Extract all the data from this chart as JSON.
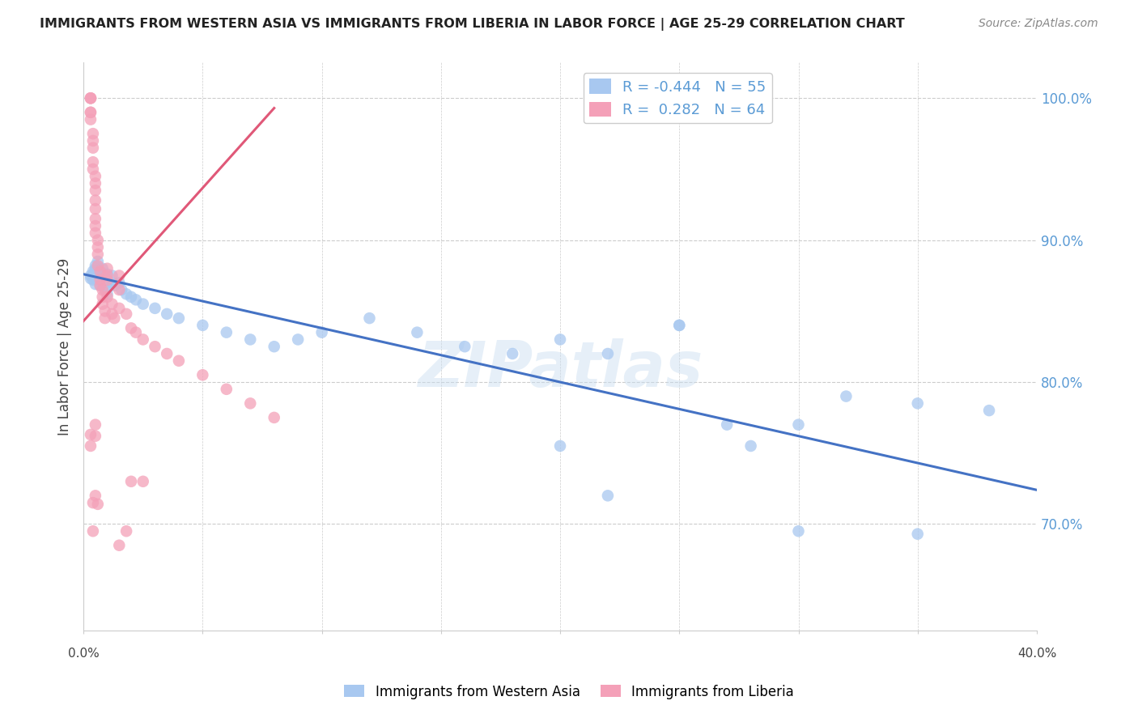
{
  "title": "IMMIGRANTS FROM WESTERN ASIA VS IMMIGRANTS FROM LIBERIA IN LABOR FORCE | AGE 25-29 CORRELATION CHART",
  "source": "Source: ZipAtlas.com",
  "ylabel": "In Labor Force | Age 25-29",
  "blue_R": -0.444,
  "blue_N": 55,
  "pink_R": 0.282,
  "pink_N": 64,
  "blue_label": "Immigrants from Western Asia",
  "pink_label": "Immigrants from Liberia",
  "blue_color": "#a8c8f0",
  "pink_color": "#f4a0b8",
  "blue_line_color": "#4472c4",
  "pink_line_color": "#e05878",
  "watermark": "ZIPatlas",
  "axis_color": "#5b9bd5",
  "xmin": 0.0,
  "xmax": 0.4,
  "ymin": 0.625,
  "ymax": 1.025,
  "blue_scatter_x": [
    0.003,
    0.003,
    0.004,
    0.004,
    0.004,
    0.005,
    0.005,
    0.005,
    0.005,
    0.006,
    0.006,
    0.007,
    0.007,
    0.008,
    0.008,
    0.009,
    0.01,
    0.01,
    0.01,
    0.012,
    0.012,
    0.013,
    0.015,
    0.016,
    0.018,
    0.02,
    0.022,
    0.025,
    0.03,
    0.035,
    0.04,
    0.05,
    0.06,
    0.07,
    0.08,
    0.09,
    0.1,
    0.12,
    0.14,
    0.16,
    0.18,
    0.2,
    0.22,
    0.25,
    0.27,
    0.3,
    0.32,
    0.35,
    0.38,
    0.25,
    0.2,
    0.28,
    0.3,
    0.22,
    0.35
  ],
  "blue_scatter_y": [
    0.875,
    0.873,
    0.878,
    0.872,
    0.876,
    0.88,
    0.882,
    0.878,
    0.869,
    0.885,
    0.872,
    0.876,
    0.868,
    0.88,
    0.875,
    0.865,
    0.87,
    0.876,
    0.862,
    0.875,
    0.87,
    0.868,
    0.87,
    0.865,
    0.862,
    0.86,
    0.858,
    0.855,
    0.852,
    0.848,
    0.845,
    0.84,
    0.835,
    0.83,
    0.825,
    0.83,
    0.835,
    0.845,
    0.835,
    0.825,
    0.82,
    0.83,
    0.82,
    0.84,
    0.77,
    0.77,
    0.79,
    0.785,
    0.78,
    0.84,
    0.755,
    0.755,
    0.695,
    0.72,
    0.693
  ],
  "pink_scatter_x": [
    0.003,
    0.003,
    0.003,
    0.003,
    0.003,
    0.003,
    0.004,
    0.004,
    0.004,
    0.004,
    0.004,
    0.005,
    0.005,
    0.005,
    0.005,
    0.005,
    0.005,
    0.005,
    0.005,
    0.006,
    0.006,
    0.006,
    0.006,
    0.007,
    0.007,
    0.007,
    0.008,
    0.008,
    0.008,
    0.009,
    0.009,
    0.01,
    0.01,
    0.01,
    0.01,
    0.012,
    0.012,
    0.013,
    0.015,
    0.015,
    0.015,
    0.018,
    0.02,
    0.022,
    0.025,
    0.03,
    0.035,
    0.04,
    0.05,
    0.06,
    0.07,
    0.08,
    0.003,
    0.003,
    0.004,
    0.004,
    0.005,
    0.005,
    0.005,
    0.006,
    0.015,
    0.018,
    0.02,
    0.025
  ],
  "pink_scatter_y": [
    1.0,
    1.0,
    1.0,
    0.99,
    0.99,
    0.985,
    0.975,
    0.97,
    0.965,
    0.955,
    0.95,
    0.945,
    0.94,
    0.935,
    0.928,
    0.922,
    0.915,
    0.91,
    0.905,
    0.9,
    0.895,
    0.89,
    0.882,
    0.878,
    0.872,
    0.868,
    0.865,
    0.86,
    0.855,
    0.85,
    0.845,
    0.88,
    0.875,
    0.872,
    0.86,
    0.855,
    0.848,
    0.845,
    0.875,
    0.865,
    0.852,
    0.848,
    0.838,
    0.835,
    0.83,
    0.825,
    0.82,
    0.815,
    0.805,
    0.795,
    0.785,
    0.775,
    0.763,
    0.755,
    0.715,
    0.695,
    0.77,
    0.762,
    0.72,
    0.714,
    0.685,
    0.695,
    0.73,
    0.73
  ]
}
